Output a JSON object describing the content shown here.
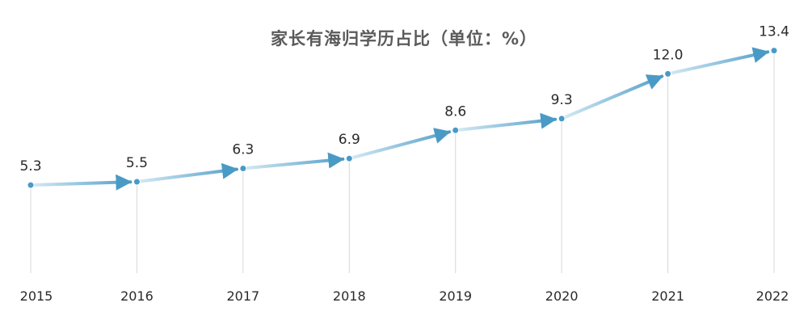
{
  "chart_data": {
    "type": "line",
    "title": "家长有海归学历占比（单位：%）",
    "categories": [
      "2015",
      "2016",
      "2017",
      "2018",
      "2019",
      "2020",
      "2021",
      "2022"
    ],
    "values": [
      5.3,
      5.5,
      6.3,
      6.9,
      8.6,
      9.3,
      12.0,
      13.4
    ],
    "value_labels": [
      "5.3",
      "5.5",
      "6.3",
      "6.9",
      "8.6",
      "9.3",
      "12.0",
      "13.4"
    ],
    "xlabel": "",
    "ylabel": "",
    "ylim": [
      0,
      14.5
    ],
    "grid": false,
    "line_color": "#4a9ac6",
    "line_fade_color": "#d6eaf4",
    "drop_line_color": "#d8d8d8"
  }
}
